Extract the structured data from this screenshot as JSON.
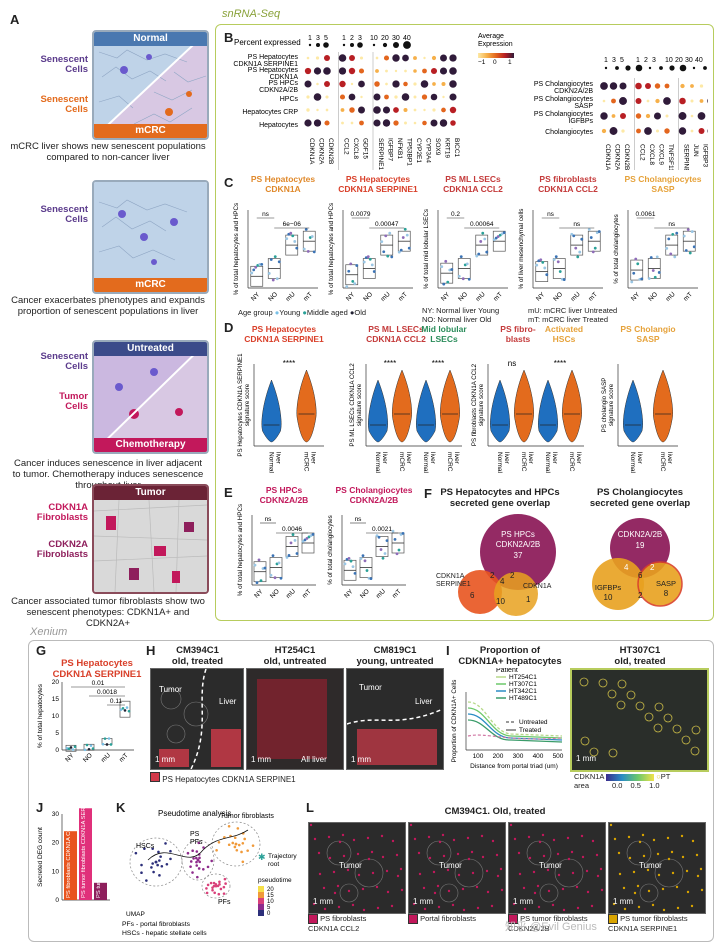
{
  "sections": {
    "snrna": "snRNA-Seq",
    "xenium": "Xenium"
  },
  "panel_a": {
    "letter": "A",
    "cards": [
      {
        "top_tag": "Normal",
        "bottom_tag": "mCRC",
        "left_top": "Senescent\nCells",
        "left_bottom": "Senescent\nCells",
        "caption": "mCRC liver shows new senescent populations compared to non-cancer liver"
      },
      {
        "top_tag": "",
        "bottom_tag": "mCRC",
        "left_top": "Senescent\nCells",
        "left_bottom": "",
        "caption": "Cancer exacerbates phenotypes and expands proportion of senescent populations in liver"
      },
      {
        "top_tag": "Untreated",
        "bottom_tag": "Chemotherapy",
        "left_top": "Senescent\nCells",
        "left_bottom": "Tumor\nCells",
        "caption": "Cancer induces senescence in liver adjacent to tumor. Chemotherapy induces senescence throughout liver"
      },
      {
        "top_tag": "Tumor",
        "bottom_tag": "",
        "left_top": "CDKN1A\nFibroblasts",
        "left_bottom": "CDKN2A\nFibroblasts",
        "caption": "Cancer associated tumor fibroblasts show two senescent phenotypes: CDKN1A+ and CDKN2A+"
      }
    ]
  },
  "panel_b": {
    "letter": "B",
    "pct_label": "Percent expressed",
    "pct_values_left": [
      "1",
      "3",
      "5"
    ],
    "pct_values_mid": [
      "1",
      "2",
      "3"
    ],
    "pct_values_right": [
      "10",
      "20",
      "30",
      "40"
    ],
    "expr_label": "Average\nExpression",
    "expr_ticks": [
      "−1",
      "0",
      "1"
    ],
    "left_rows": [
      "PS Hepatocytes\nCDKN1A SERPINE1",
      "PS Hepatocytes\nCDKN1A",
      "PS HPCs\nCDKN2A/2B",
      "HPCs",
      "Hepatocytes CRP",
      "Hepatocytes"
    ],
    "left_genes_a": [
      "CDKN1A",
      "CDKN2A",
      "CDKN2B"
    ],
    "left_genes_b": [
      "CCL2",
      "CXCL8",
      "GDF15"
    ],
    "left_genes_c": [
      "SERPINE1",
      "IGFBP7",
      "NFKB1",
      "TP53BP1",
      "CYP2E1",
      "CYP3A4",
      "SOX9",
      "KRT19",
      "BICC1"
    ],
    "right_rows": [
      "PS Cholangiocytes\nCDKN2A/2B",
      "PS Cholangiocytes\nSASP",
      "PS Cholangiocytes\nIGFBPs",
      "Cholangiocytes"
    ],
    "right_genes_a": [
      "CDKN1A",
      "CDKN2A",
      "CDKN2B"
    ],
    "right_genes_b": [
      "CCL2",
      "CXCL8",
      "CXCL9",
      "TNFSF11"
    ],
    "right_genes_c": [
      "SERPINE1",
      "JUN",
      "IGFBP3",
      "IGFBP1",
      "NFKB1",
      "TP53",
      "TP53BP1"
    ]
  },
  "panel_c": {
    "letter": "C",
    "plots": [
      {
        "title": "PS Hepatocytes\nCDKN1A",
        "color": "#e0892b",
        "ylabel": "% of total hepatocytes and HPCs",
        "stats": [
          "ns",
          "6e−06"
        ]
      },
      {
        "title": "PS Hepatocytes\nCDKN1A SERPINE1",
        "color": "#d9402a",
        "ylabel": "% of total hepatocytes and HPCs",
        "stats": [
          "0.0079",
          "0.00047"
        ]
      },
      {
        "title": "PS ML LSECs\nCDKN1A CCL2",
        "color": "#c43a3a",
        "ylabel": "% of total mid lobular LSECs",
        "stats": [
          "0.2",
          "0.00064"
        ]
      },
      {
        "title": "PS fibroblasts\nCDKN1A CCL2",
        "color": "#c43a3a",
        "ylabel": "% of liver mesenchymal cells",
        "stats": [
          "ns",
          "ns"
        ]
      },
      {
        "title": "PS Cholangiocytes\nSASP",
        "color": "#e6a23a",
        "ylabel": "% of total cholangiocytes",
        "stats": [
          "0.0061",
          "ns"
        ]
      }
    ],
    "xticks": [
      "NY",
      "NO",
      "mU",
      "mT"
    ],
    "age_label": "Age group",
    "age_items": [
      "Young",
      "Middle aged",
      "Old"
    ],
    "key_lines": [
      "NY: Normal liver Young",
      "NO: Normal liver Old",
      "mU: mCRC liver Untreated",
      "mT: mCRC liver Treated"
    ]
  },
  "panel_d": {
    "letter": "D",
    "plots": [
      {
        "title": "PS Hepatocytes\nCDKN1A SERPINE1",
        "color": "#d9402a",
        "ylabel": "PS Hepatocytes CDKN1A SERPINE1\nsignature score",
        "stats": [
          "****"
        ],
        "xlabels": [
          "Normal\nliver",
          "mCRC\nliver"
        ]
      },
      {
        "title": "PS ML LSECs\nCDKN1A CCL2",
        "color": "#c43a3a",
        "ylabel": "PS ML LSECs CDKN1A CCL2\nsignature score",
        "stats": [
          "****",
          "****"
        ],
        "xlabels": [
          "Normal\nliver",
          "mCRC\nliver",
          "Normal\nliver",
          "mCRC\nliver"
        ]
      },
      {
        "title": "PS fibro-\nblasts",
        "color": "#c43a3a",
        "ylabel": "PS fibroblasts CDKN1A CCL2\nsignature score",
        "stats": [
          "ns",
          "****"
        ],
        "xlabels": [
          "Normal\nliver",
          "mCRC\nliver",
          "Normal\nliver",
          "mCRC\nliver"
        ]
      },
      {
        "title": "PS Cholangio\nSASP",
        "color": "#e6a23a",
        "ylabel": "PS cholangio SASP\nsignature score",
        "stats": [],
        "xlabels": [
          "Normal\nliver",
          "mCRC\nliver"
        ]
      }
    ],
    "extra_titles": {
      "mid": "Mid lobular\nLSECs",
      "hsc": "Activated\nHSCs"
    }
  },
  "panel_e": {
    "letter": "E",
    "plots": [
      {
        "title": "PS HPCs\nCDKN2A/2B",
        "color": "#c2185b",
        "ylabel": "% of total hepatocytes and HPCs",
        "stats": [
          "ns",
          "0.0046"
        ]
      },
      {
        "title": "PS Cholangiocytes\nCDKN2A/2B",
        "color": "#c2185b",
        "ylabel": "% of total cholangiocytes",
        "stats": [
          "ns",
          "0.0021"
        ]
      }
    ]
  },
  "panel_f": {
    "letter": "F",
    "left_title": "PS Hepatocytes and HPCs\nsecreted gene overlap",
    "right_title": "PS Cholangiocytes\nsecreted gene overlap",
    "left_sets": {
      "big": "PS HPCs\nCDKN2A/2B",
      "big_n": "37",
      "a": "CDKN1A\nSERPINE1",
      "b": "CDKN1A",
      "n_a": "6",
      "n_ab": "10",
      "n_b": "1",
      "n_2": "2",
      "n_4": "4",
      "n_2b": "2"
    },
    "right_sets": {
      "top": "CDKN2A/2B",
      "top_n": "19",
      "l": "IGFBPs",
      "l_n": "10",
      "r": "SASP",
      "r_n": "8",
      "n1": "4",
      "n2": "6",
      "n3": "2",
      "n4": "2"
    }
  },
  "panel_g": {
    "letter": "G",
    "title": "PS Hepatocytes\nCDKN1A SERPINE1",
    "ylabel": "% of total hepatocytes",
    "yticks": [
      "0",
      "5",
      "10",
      "15",
      "20"
    ],
    "stats": [
      "0.01",
      "0.0018",
      "0.11"
    ],
    "xticks": [
      "NY",
      "NO",
      "mU",
      "mT"
    ]
  },
  "panel_h": {
    "letter": "H",
    "images": [
      {
        "title": "CM394C1\nold, treated",
        "labels": [
          "Tumor",
          "Liver"
        ],
        "scale": "1 mm"
      },
      {
        "title": "HT254C1\nold, untreated",
        "labels": [
          "All liver"
        ],
        "scale": "1 mm"
      },
      {
        "title": "CM819C1\nyoung, untreated",
        "labels": [
          "Tumor",
          "Liver"
        ],
        "scale": "1 mm"
      }
    ],
    "legend": "PS Hepatocytes CDKN1A SERPINE1"
  },
  "panel_i": {
    "letter": "I",
    "title": "Proportion of\nCDKN1A+ hepatocytes",
    "ylabel": "Proportion of CDKN1A+ Cells",
    "xlabel": "Distance from portal triad (um)",
    "xticks": [
      "100",
      "200",
      "300",
      "400",
      "500"
    ],
    "patient_label": "Patient",
    "patients": [
      "HT254C1",
      "HT307C1",
      "HT342C1",
      "HT489C1"
    ],
    "line_types": [
      "Untreated",
      "Treated"
    ],
    "image_title": "HT307C1\nold, treated",
    "scale": "1 mm",
    "colorbar_label": "CDKN1A",
    "colorbar_ticks": [
      "0.0",
      "0.5",
      "1.0"
    ],
    "pt_label": "PT\narea"
  },
  "panel_j": {
    "letter": "J",
    "ylabel": "Secreted DEG count",
    "yticks": [
      "0",
      "10",
      "20",
      "30"
    ],
    "bars": [
      "PS fibroblasts\nCDKN1A CCL2",
      "PS tumor fibroblasts CDKN1A SERPINE1",
      "PS tumor fibroblasts CDKN2A/2B"
    ]
  },
  "panel_k": {
    "letter": "K",
    "title": "Pseudotime analysis",
    "labels": [
      "HSCs",
      "PS\nPFs",
      "Tumor fibroblasts",
      "PFs"
    ],
    "root": "Trajectory\nroot",
    "axis": "UMAP",
    "legend_title": "pseudotime",
    "legend_ticks": [
      "20",
      "15",
      "10",
      "5",
      "0"
    ],
    "foot": [
      "PFs - portal fibroblasts",
      "HSCs - hepatic stellate cells"
    ]
  },
  "panel_l": {
    "letter": "L",
    "title": "CM394C1. Old, treated",
    "images": [
      {
        "legend": "PS fibroblasts\nCDKN1A CCL2",
        "color": "#c2185b"
      },
      {
        "legend": "Portal fibroblasts",
        "color": "#c2185b"
      },
      {
        "legend": "PS tumor fibroblasts\nCDKN2A/2B",
        "color": "#c2185b"
      },
      {
        "legend": "PS tumor fibroblasts\nCDKN1A SERPINE1",
        "color": "#d9a400"
      }
    ],
    "tumor": "Tumor",
    "scale": "1 mm"
  },
  "watermark": "知乎 @Evil Genius",
  "colors": {
    "accent_green": "#b7cc5d",
    "blue": "#1f6fbf",
    "orange": "#e36b1d",
    "purple": "#5b3b8c"
  }
}
